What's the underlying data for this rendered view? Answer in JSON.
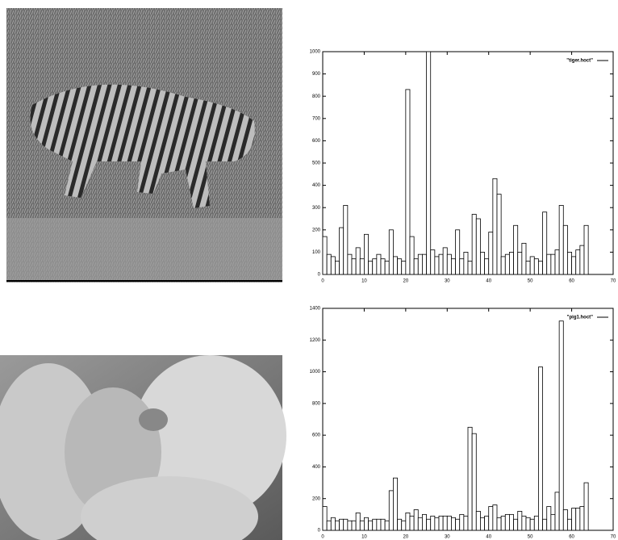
{
  "chart_data": [
    {
      "type": "bar",
      "series": [
        {
          "name": "\"tiger.hoct\"",
          "color": "#000000",
          "values": [
            170,
            90,
            80,
            60,
            210,
            310,
            90,
            70,
            120,
            70,
            180,
            60,
            70,
            90,
            70,
            60,
            200,
            80,
            70,
            60,
            830,
            170,
            70,
            90,
            90,
            1000,
            110,
            80,
            90,
            120,
            90,
            70,
            200,
            70,
            100,
            60,
            270,
            250,
            100,
            70,
            190,
            430,
            360,
            80,
            90,
            100,
            220,
            100,
            140,
            60,
            80,
            70,
            60,
            280,
            90,
            90,
            110,
            310,
            220,
            100,
            80,
            110,
            130,
            220
          ]
        }
      ],
      "xlim": [
        0,
        70
      ],
      "xticks": [
        0,
        10,
        20,
        30,
        40,
        50,
        60,
        70
      ],
      "ylim": [
        0,
        1000
      ],
      "yticks": [
        0,
        100,
        200,
        300,
        400,
        500,
        600,
        700,
        800,
        900,
        1000
      ]
    },
    {
      "type": "bar",
      "series": [
        {
          "name": "\"pig1.hoct\"",
          "color": "#000000",
          "values": [
            150,
            60,
            80,
            60,
            70,
            70,
            60,
            60,
            110,
            60,
            80,
            60,
            70,
            70,
            70,
            60,
            250,
            330,
            70,
            60,
            110,
            90,
            130,
            80,
            100,
            70,
            90,
            80,
            90,
            90,
            90,
            80,
            70,
            100,
            90,
            650,
            610,
            120,
            80,
            90,
            150,
            160,
            80,
            90,
            100,
            100,
            70,
            120,
            90,
            80,
            70,
            90,
            1030,
            70,
            150,
            100,
            240,
            1320,
            130,
            70,
            140,
            140,
            150,
            300
          ]
        }
      ],
      "xlim": [
        0,
        70
      ],
      "xticks": [
        0,
        10,
        20,
        30,
        40,
        50,
        60,
        70
      ],
      "ylim": [
        0,
        1400
      ],
      "yticks": [
        0,
        200,
        400,
        600,
        800,
        1000,
        1200,
        1400
      ]
    }
  ]
}
